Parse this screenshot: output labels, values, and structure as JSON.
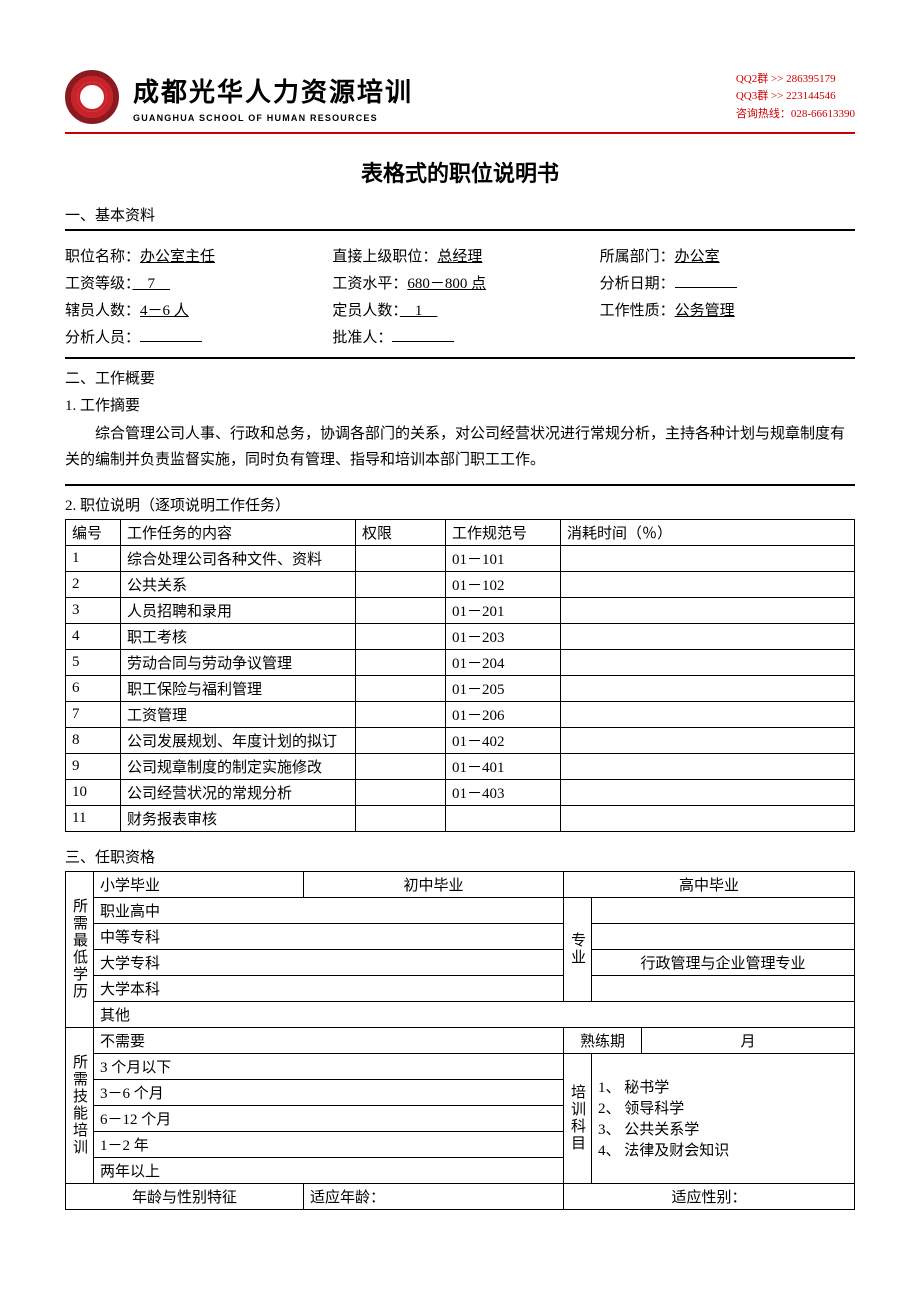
{
  "header": {
    "org_cn": "成都光华人力资源培训",
    "org_en": "GUANGHUA SCHOOL OF HUMAN RESOURCES",
    "qq2_label": "QQ2群 >> ",
    "qq2": "286395179",
    "qq3_label": "QQ3群 >> ",
    "qq3": "223144546",
    "hotline_label": "咨询热线：",
    "hotline": "028-66613390"
  },
  "doc_title": "表格式的职位说明书",
  "sec1": {
    "heading": "一、基本资料",
    "position_label": "职位名称：",
    "position": "办公室主任",
    "supervisor_label": "直接上级职位：",
    "supervisor": "总经理",
    "dept_label": "所属部门：",
    "dept": "办公室",
    "grade_label": "工资等级：",
    "grade": "　7　",
    "salary_label": "工资水平：",
    "salary": "680－800 点",
    "date_label": "分析日期：",
    "subcount_label": "辖员人数：",
    "subcount": "4－6 人",
    "headcount_label": "定员人数：",
    "headcount": "　1　",
    "nature_label": "工作性质：",
    "nature": "公务管理",
    "analyst_label": "分析人员：",
    "approver_label": "批准人："
  },
  "sec2": {
    "heading": "二、工作概要",
    "sub1": "1. 工作摘要",
    "summary": "综合管理公司人事、行政和总务，协调各部门的关系，对公司经营状况进行常规分析，主持各种计划与规章制度有关的编制并负责监督实施，同时负有管理、指导和培训本部门职工工作。",
    "sub2": "2. 职位说明（逐项说明工作任务）",
    "cols": [
      "编号",
      "工作任务的内容",
      "权限",
      "工作规范号",
      "消耗时间（％）"
    ],
    "rows": [
      [
        "1",
        "综合处理公司各种文件、资料",
        "",
        "01－101",
        ""
      ],
      [
        "2",
        "公共关系",
        "",
        "01－102",
        ""
      ],
      [
        "3",
        "人员招聘和录用",
        "",
        "01－201",
        ""
      ],
      [
        "4",
        "职工考核",
        "",
        "01－203",
        ""
      ],
      [
        "5",
        "劳动合同与劳动争议管理",
        "",
        "01－204",
        ""
      ],
      [
        "6",
        "职工保险与福利管理",
        "",
        "01－205",
        ""
      ],
      [
        "7",
        "工资管理",
        "",
        "01－206",
        ""
      ],
      [
        "8",
        "公司发展规划、年度计划的拟订",
        "",
        "01－402",
        ""
      ],
      [
        "9",
        "公司规章制度的制定实施修改",
        "",
        "01－401",
        ""
      ],
      [
        "10",
        "公司经营状况的常规分析",
        "",
        "01－403",
        ""
      ],
      [
        "11",
        "财务报表审核",
        "",
        "",
        ""
      ]
    ]
  },
  "sec3": {
    "heading": "三、任职资格",
    "edu_label": "所需最低学历",
    "edu_rows": [
      "小学毕业",
      "职业高中",
      "中等专科",
      "大学专科",
      "大学本科",
      "其他"
    ],
    "edu_mid": "初中毕业",
    "edu_right": "高中毕业",
    "major_label": "专业",
    "major_text": "行政管理与企业管理专业",
    "train_label": "所需技能培训",
    "train_rows": [
      "不需要",
      "3 个月以下",
      "3－6 个月",
      "6－12 个月",
      "1－2 年",
      "两年以上"
    ],
    "probation_label": "熟练期",
    "probation_unit": "月",
    "subjects_label": "培训科目",
    "subjects": [
      "1、 秘书学",
      "2、 领导科学",
      "3、 公共关系学",
      "4、 法律及财会知识"
    ],
    "age_row_label": "年龄与性别特征",
    "age_label": "适应年龄：",
    "sex_label": "适应性别："
  },
  "colors": {
    "red": "#c8232a",
    "text": "#000000",
    "bg": "#ffffff"
  }
}
